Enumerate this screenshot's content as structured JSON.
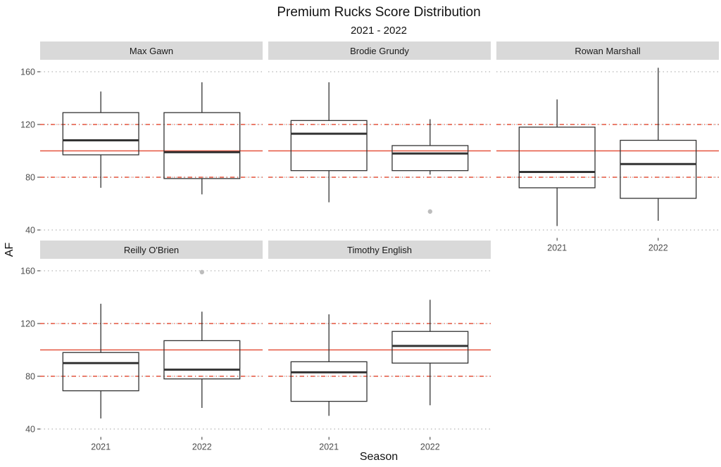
{
  "chart_data": {
    "type": "boxplot",
    "title": "Premium Rucks Score Distribution",
    "subtitle": "2021 - 2022",
    "xlabel": "Season",
    "ylabel": "AF",
    "ylim": [
      34,
      167
    ],
    "yticks": [
      40,
      80,
      120,
      160
    ],
    "categories": [
      "2021",
      "2022"
    ],
    "reference_lines": [
      {
        "value": 100,
        "style": "solid",
        "color": "#e5553f"
      },
      {
        "value": 80,
        "style": "dashdot",
        "color": "#e5553f"
      },
      {
        "value": 120,
        "style": "dashdot",
        "color": "#e5553f"
      }
    ],
    "grid": "dotted major horizontal",
    "panels": [
      {
        "name": "Max Gawn",
        "boxes": [
          {
            "season": "2021",
            "min": 72,
            "q1": 97,
            "median": 108,
            "q3": 129,
            "max": 145,
            "outliers": []
          },
          {
            "season": "2022",
            "min": 67,
            "q1": 79,
            "median": 99,
            "q3": 129,
            "max": 152,
            "outliers": []
          }
        ]
      },
      {
        "name": "Brodie Grundy",
        "boxes": [
          {
            "season": "2021",
            "min": 61,
            "q1": 85,
            "median": 113,
            "q3": 123,
            "max": 152,
            "outliers": []
          },
          {
            "season": "2022",
            "min": 82,
            "q1": 85,
            "median": 98,
            "q3": 104,
            "max": 124,
            "outliers": [
              54
            ]
          }
        ]
      },
      {
        "name": "Rowan Marshall",
        "boxes": [
          {
            "season": "2021",
            "min": 43,
            "q1": 72,
            "median": 84,
            "q3": 118,
            "max": 139,
            "outliers": []
          },
          {
            "season": "2022",
            "min": 47,
            "q1": 64,
            "median": 90,
            "q3": 108,
            "max": 163,
            "outliers": []
          }
        ]
      },
      {
        "name": "Reilly O'Brien",
        "boxes": [
          {
            "season": "2021",
            "min": 48,
            "q1": 69,
            "median": 90,
            "q3": 98,
            "max": 135,
            "outliers": []
          },
          {
            "season": "2022",
            "min": 56,
            "q1": 78,
            "median": 85,
            "q3": 107,
            "max": 129,
            "outliers": [
              159
            ]
          }
        ]
      },
      {
        "name": "Timothy English",
        "boxes": [
          {
            "season": "2021",
            "min": 50,
            "q1": 61,
            "median": 83,
            "q3": 91,
            "max": 127,
            "outliers": []
          },
          {
            "season": "2022",
            "min": 58,
            "q1": 90,
            "median": 103,
            "q3": 114,
            "max": 138,
            "outliers": []
          }
        ]
      }
    ]
  }
}
